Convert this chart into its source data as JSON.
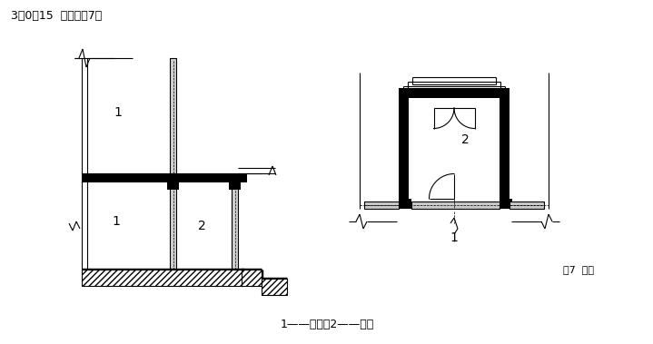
{
  "title": "3．0．15  门斗见图7。",
  "caption": "1——室内；2——门斗",
  "fig7_label": "图7  门斗",
  "bg_color": "#ffffff",
  "line_color": "#000000"
}
